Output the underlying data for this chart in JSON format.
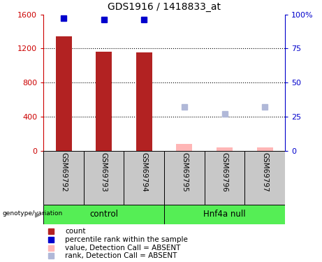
{
  "title": "GDS1916 / 1418833_at",
  "samples": [
    "GSM69792",
    "GSM69793",
    "GSM69794",
    "GSM69795",
    "GSM69796",
    "GSM69797"
  ],
  "bar_values": [
    1340,
    1160,
    1150,
    75,
    35,
    40
  ],
  "bar_color_present": "#b22222",
  "bar_color_absent": "#ffb6b6",
  "blue_rank_present": [
    97,
    96,
    96,
    null,
    null,
    null
  ],
  "blue_rank_absent": [
    null,
    null,
    null,
    32,
    27,
    32
  ],
  "absent_flags": [
    false,
    false,
    false,
    true,
    true,
    true
  ],
  "ylim_left": [
    0,
    1600
  ],
  "ylim_right": [
    0,
    100
  ],
  "yticks_left": [
    0,
    400,
    800,
    1200,
    1600
  ],
  "yticks_right": [
    0,
    25,
    50,
    75,
    100
  ],
  "yticklabels_left": [
    "0",
    "400",
    "800",
    "1200",
    "1600"
  ],
  "yticklabels_right": [
    "0",
    "25",
    "50",
    "75",
    "100%"
  ],
  "left_tick_color": "#cc0000",
  "right_tick_color": "#0000cc",
  "label_area_color": "#c8c8c8",
  "green_color": "#55ee55",
  "group_ranges": [
    [
      0,
      3,
      "control"
    ],
    [
      3,
      6,
      "Hnf4a null"
    ]
  ],
  "legend_items": [
    {
      "label": "count",
      "color": "#b22222"
    },
    {
      "label": "percentile rank within the sample",
      "color": "#0000cd"
    },
    {
      "label": "value, Detection Call = ABSENT",
      "color": "#ffb6b6"
    },
    {
      "label": "rank, Detection Call = ABSENT",
      "color": "#b0b8d8"
    }
  ]
}
